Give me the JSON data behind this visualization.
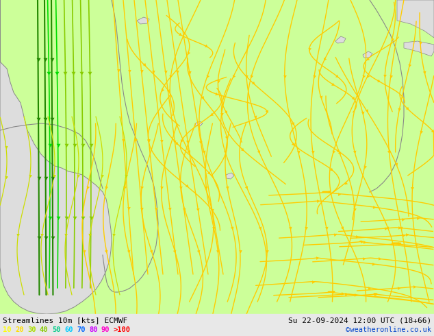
{
  "title_left": "Streamlines 10m [kts] ECMWF",
  "title_right": "Su 22-09-2024 12:00 UTC (18+66)",
  "credit": "©weatheronline.co.uk",
  "legend_values": [
    "10",
    "20",
    "30",
    "40",
    "50",
    "60",
    "70",
    "80",
    "90",
    ">100"
  ],
  "legend_colors": [
    "#ffff00",
    "#ffdd00",
    "#aadd00",
    "#88cc00",
    "#00cc88",
    "#00ccff",
    "#0066ff",
    "#cc00ff",
    "#ff00cc",
    "#ff0000"
  ],
  "bg_color_green": "#ccff99",
  "bg_color_gray": "#dddddd",
  "streamline_yellow": "#ffcc00",
  "streamline_lightyellow": "#ddcc00",
  "streamline_green": "#88cc00",
  "streamline_darkgreen": "#44aa00",
  "streamline_brightgreen": "#00dd00",
  "coast_color": "#888888",
  "text_color": "#000000",
  "credit_color": "#0044cc",
  "figsize": [
    6.34,
    4.9
  ],
  "dpi": 100
}
